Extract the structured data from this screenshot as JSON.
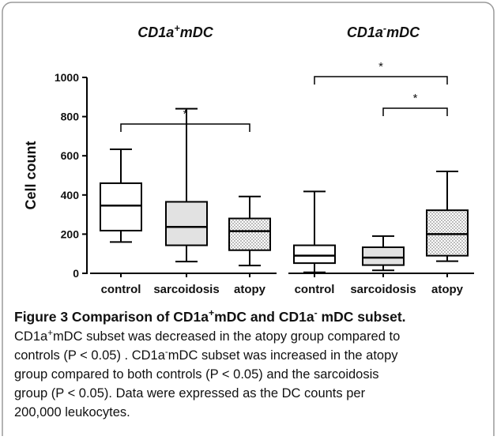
{
  "chart_data": {
    "type": "box",
    "y_label": "Cell count",
    "ylim": [
      0,
      1000
    ],
    "yticks": [
      0,
      200,
      400,
      600,
      800,
      1000
    ],
    "groups": [
      {
        "title_parts": [
          "CD1a",
          "+",
          "mDC"
        ],
        "boxes": [
          {
            "name": "control",
            "fill": "#ffffff",
            "min": 160,
            "q1": 218,
            "median": 346,
            "q3": 460,
            "max": 633
          },
          {
            "name": "sarcoidosis",
            "fill": "#e2e2e2",
            "min": 60,
            "q1": 143,
            "median": 237,
            "q3": 365,
            "max": 840
          },
          {
            "name": "atopy",
            "fill": "dots",
            "min": 40,
            "q1": 118,
            "median": 215,
            "q3": 280,
            "max": 392
          }
        ],
        "annotations": [
          {
            "label": "*",
            "from": "control",
            "to": "atopy"
          }
        ]
      },
      {
        "title_parts": [
          "CD1a",
          "-",
          "mDC"
        ],
        "boxes": [
          {
            "name": "control",
            "fill": "#ffffff",
            "min": 5,
            "q1": 52,
            "median": 90,
            "q3": 143,
            "max": 418
          },
          {
            "name": "sarcoidosis",
            "fill": "#e2e2e2",
            "min": 15,
            "q1": 42,
            "median": 80,
            "q3": 133,
            "max": 190
          },
          {
            "name": "atopy",
            "fill": "dots",
            "min": 62,
            "q1": 90,
            "median": 200,
            "q3": 322,
            "max": 520
          }
        ],
        "annotations": [
          {
            "label": "*",
            "from": "control",
            "to": "atopy"
          },
          {
            "label": "*",
            "from": "sarcoidosis",
            "to": "atopy"
          }
        ]
      }
    ]
  },
  "caption": {
    "title_parts": [
      "Figure 3 Comparison of CD1a",
      "+",
      "mDC and CD1a",
      "-",
      " mDC subset."
    ],
    "lines": [
      [
        "CD1a",
        "+",
        "mDC subset was decreased in the atopy group compared to"
      ],
      [
        "controls (P < 0.05) . CD1a",
        "-",
        "mDC subset was increased in the atopy"
      ],
      [
        "group compared to both controls (P < 0.05) and the sarcoidosis"
      ],
      [
        "group (P < 0.05). Data were expressed as the DC counts per"
      ],
      [
        "200,000 leukocytes."
      ]
    ]
  }
}
